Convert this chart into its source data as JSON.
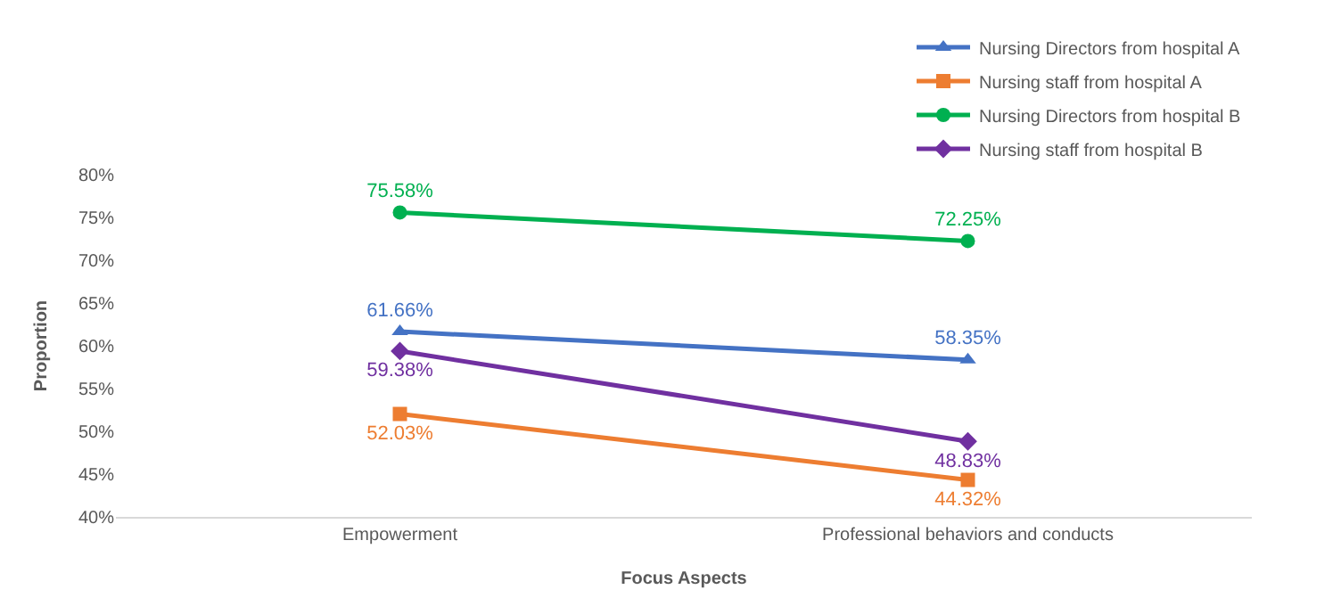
{
  "chart_data": {
    "type": "line",
    "xlabel": "Focus Aspects",
    "ylabel": "Proportion",
    "categories": [
      "Empowerment",
      "Professional behaviors and conducts"
    ],
    "series": [
      {
        "name": "Nursing Directors from hospital A",
        "color": "#4472c4",
        "marker": "triangle",
        "values": [
          61.66,
          58.35
        ],
        "value_labels": [
          "61.66%",
          "58.35%"
        ]
      },
      {
        "name": "Nursing staff from hospital A",
        "color": "#ed7d31",
        "marker": "square",
        "values": [
          52.03,
          44.32
        ],
        "value_labels": [
          "52.03%",
          "44.32%"
        ]
      },
      {
        "name": "Nursing Directors from hospital B",
        "color": "#00b050",
        "marker": "circle",
        "values": [
          75.58,
          72.25
        ],
        "value_labels": [
          "75.58%",
          "72.25%"
        ]
      },
      {
        "name": "Nursing staff from hospital B",
        "color": "#7030a0",
        "marker": "diamond",
        "values": [
          59.38,
          48.83
        ],
        "value_labels": [
          "59.38%",
          "48.83%"
        ]
      }
    ],
    "ylim": [
      40,
      80
    ],
    "yticks": [
      {
        "value": 40,
        "label": "40%"
      },
      {
        "value": 45,
        "label": "45%"
      },
      {
        "value": 50,
        "label": "50%"
      },
      {
        "value": 55,
        "label": "55%"
      },
      {
        "value": 60,
        "label": "60%"
      },
      {
        "value": 65,
        "label": "65%"
      },
      {
        "value": 70,
        "label": "70%"
      },
      {
        "value": 75,
        "label": "75%"
      },
      {
        "value": 80,
        "label": "80%"
      }
    ],
    "legend": "top right",
    "line_style": "solid"
  }
}
